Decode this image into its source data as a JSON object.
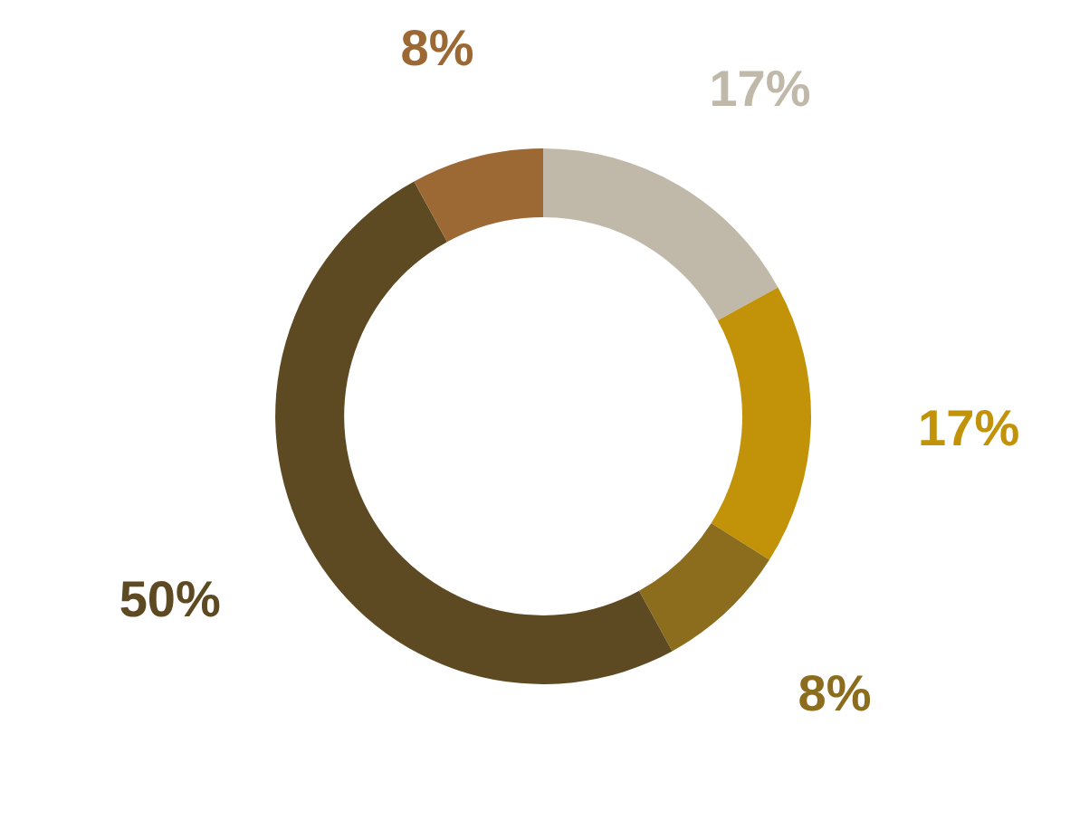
{
  "chart_data": {
    "type": "donut",
    "categories": [
      null,
      null,
      null,
      null,
      null
    ],
    "values": [
      17,
      17,
      8,
      50,
      8
    ],
    "colors": [
      "#c0b9aa",
      "#c29309",
      "#8c6d1d",
      "#5e4a22",
      "#9c6935"
    ],
    "value_labels": [
      "17%",
      "17%",
      "8%",
      "50%",
      "8%"
    ]
  }
}
